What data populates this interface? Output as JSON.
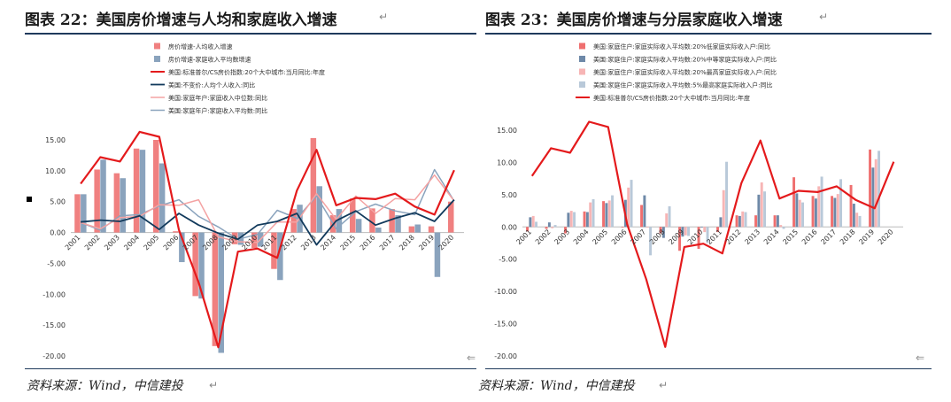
{
  "left": {
    "title": "图表  22：美国房价增速与人均和家庭收入增速",
    "source": "资料来源：Wind，中信建投",
    "chart_data": {
      "type": "bar",
      "categories": [
        "2001",
        "2002",
        "2003",
        "2004",
        "2005",
        "2006",
        "2007",
        "2008",
        "2009",
        "2010",
        "2011",
        "2012",
        "2013",
        "2014",
        "2015",
        "2016",
        "2017",
        "2018",
        "2019",
        "2020"
      ],
      "ylim": [
        -20,
        15
      ],
      "yticks": [
        15,
        10,
        5,
        0,
        -5,
        -10,
        -15,
        -20
      ],
      "ytick_labels": [
        "15.00",
        "10.00",
        "5.00",
        "0.00",
        "-5.00",
        "-10.00",
        "-15.00",
        "-20.00"
      ],
      "bar_series": [
        {
          "name": "房价增速-人均收入增速",
          "color": "#f08080",
          "values": [
            6.2,
            10.2,
            9.6,
            13.6,
            15,
            0.2,
            -10.3,
            -18.4,
            -1.9,
            -2.5,
            -5.9,
            3.8,
            15.3,
            2.8,
            5.5,
            3.9,
            3.8,
            1,
            1,
            5
          ]
        },
        {
          "name": "房价增速-家庭收入平均数增速",
          "color": "#8aa3bd",
          "values": [
            6.2,
            11.8,
            8.8,
            13.4,
            11.2,
            -4.8,
            -10.7,
            -19.5,
            -2,
            -2.3,
            -7.7,
            4.5,
            7.5,
            3.8,
            2.2,
            0.8,
            2.8,
            1.3,
            -7.2,
            0
          ]
        }
      ],
      "line_series": [
        {
          "name": "美国:标准普尔/CS房价指数:20个大中城市:当月同比:年度",
          "color": "#e41a1c",
          "width": 2.2,
          "values": [
            7.9,
            12.2,
            11.5,
            16.3,
            15.5,
            0.4,
            -8.1,
            -18.6,
            -3.1,
            -2.6,
            -4.1,
            6.8,
            13.4,
            4.4,
            5.6,
            5.4,
            6.3,
            4.2,
            2.9,
            10.1
          ]
        },
        {
          "name": "美国:不变价:人均个人收入:同比",
          "color": "#123a5c",
          "width": 1.8,
          "values": [
            1.7,
            2,
            1.8,
            2.7,
            0.5,
            3.1,
            1.2,
            -0.1,
            -1.1,
            1.2,
            1.8,
            3.1,
            -2,
            1.9,
            3.5,
            1.2,
            2.3,
            3.2,
            1.8,
            5.3
          ]
        },
        {
          "name": "美国:家庭年户:家庭收入中位数:同比",
          "color": "#f4a3a3",
          "width": 1.5,
          "values": [
            1.6,
            0.6,
            2.4,
            2.6,
            4.5,
            4.4,
            5.3,
            -0.7,
            -1.5,
            -1.6,
            1.7,
            1.7,
            6.3,
            2.1,
            5.9,
            3.1,
            5.5,
            5.3,
            9.3,
            5.1
          ]
        },
        {
          "name": "美国:家庭年户:家庭收入平均数:同比",
          "color": "#8aa3bd",
          "width": 1.5,
          "values": [
            1.6,
            0.4,
            2.7,
            2.9,
            4.3,
            5.3,
            2.6,
            0.9,
            -1.1,
            -0.3,
            3.6,
            2.3,
            5.9,
            0.6,
            3.4,
            4.6,
            3.5,
            2.9,
            10.2,
            5.1
          ]
        }
      ]
    }
  },
  "right": {
    "title": "图表  23：美国房价增速与分层家庭收入增速",
    "source": "资料来源：Wind，中信建投",
    "chart_data": {
      "type": "bar",
      "categories": [
        "2001",
        "2002",
        "2003",
        "2004",
        "2005",
        "2006",
        "2007",
        "2008",
        "2009",
        "2010",
        "2011",
        "2012",
        "2013",
        "2014",
        "2015",
        "2016",
        "2017",
        "2018",
        "2019",
        "2020"
      ],
      "ylim": [
        -20,
        15
      ],
      "yticks": [
        15,
        10,
        5,
        0,
        -5,
        -10,
        -15,
        -20
      ],
      "ytick_labels": [
        "15.00",
        "10.00",
        "5.00",
        "0.00",
        "-5.00",
        "-10.00",
        "-15.00",
        "-20.00"
      ],
      "bar_series": [
        {
          "name": "美国:家庭住户:家庭实际收入平均数:20%低家庭实际收入户:同比",
          "color": "#ef6f6f",
          "values": [
            -0.7,
            -0.3,
            -1,
            2.4,
            4,
            -0.1,
            3.4,
            -1,
            -3.7,
            -3.4,
            -0.8,
            1.8,
            1.8,
            1.8,
            7.7,
            4.8,
            4.8,
            6.5,
            12,
            0
          ]
        },
        {
          "name": "美国:家庭住户:家庭实际收入平均数:20%中等家庭实际收入户:同比",
          "color": "#6e89a8",
          "values": [
            1.5,
            0.7,
            2.2,
            2.3,
            3.7,
            4.2,
            4.9,
            -1.7,
            -1.5,
            -0.1,
            1.5,
            1.7,
            5,
            1.8,
            5.2,
            4.4,
            4.5,
            3.6,
            9.2,
            0
          ]
        },
        {
          "name": "美国:家庭住户:家庭实际收入平均数:20%最高家庭实际收入户:同比",
          "color": "#f7b5b5",
          "values": [
            1.7,
            -0.2,
            2.5,
            3.8,
            4.1,
            6.1,
            -0.1,
            2.1,
            -1.3,
            -0.8,
            5.7,
            2.4,
            6.9,
            0.3,
            4.2,
            6.3,
            5.1,
            2.2,
            10.5,
            0
          ]
        },
        {
          "name": "美国:家庭住户:家庭实际收入平均数:5%最高家庭实际收入户:同比",
          "color": "#b9c9d9",
          "values": [
            0.8,
            0.3,
            2.3,
            4.3,
            4.9,
            7.3,
            -4.4,
            3.2,
            -1.4,
            -2.5,
            10.1,
            2.3,
            5.5,
            -0.3,
            3.8,
            7.8,
            7.4,
            1.7,
            11.8,
            0
          ]
        }
      ],
      "line_series": [
        {
          "name": "美国:标准普尔/CS房价指数:20个大中城市:当月同比:年度",
          "color": "#e41a1c",
          "width": 2.2,
          "values": [
            7.9,
            12.2,
            11.5,
            16.3,
            15.5,
            0.4,
            -8.1,
            -18.6,
            -3.1,
            -2.6,
            -4.1,
            6.8,
            13.4,
            4.4,
            5.6,
            5.4,
            6.3,
            4.2,
            2.9,
            10.1
          ]
        }
      ]
    }
  }
}
